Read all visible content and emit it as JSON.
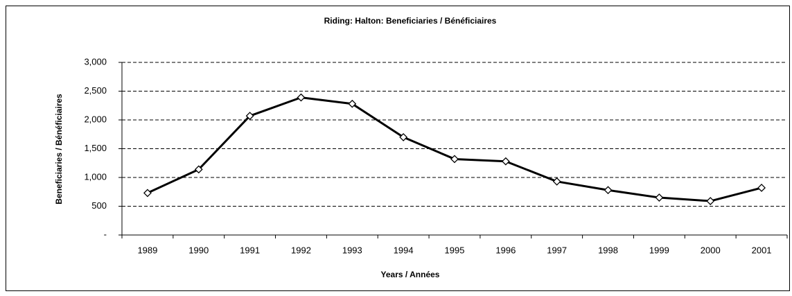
{
  "chart_data": {
    "type": "line",
    "title": "Riding:  Halton:  Beneficiaries / Bénéficiaires",
    "x_label": "Years / Années",
    "y_label": "Beneficiaries / Bénéficiaires",
    "categories": [
      "1989",
      "1990",
      "1991",
      "1992",
      "1993",
      "1994",
      "1995",
      "1996",
      "1997",
      "1998",
      "1999",
      "2000",
      "2001"
    ],
    "values": [
      730,
      1140,
      2070,
      2390,
      2280,
      1700,
      1320,
      1280,
      930,
      780,
      650,
      590,
      820
    ],
    "color": "#000000",
    "ylim": [
      0,
      3000
    ],
    "yticks": [
      {
        "value": 0,
        "label": "-"
      },
      500,
      {
        "value": 1000,
        "label": "1,000"
      },
      {
        "value": 1500,
        "label": "1,500"
      },
      {
        "value": 2000,
        "label": "2,000"
      },
      {
        "value": 2500,
        "label": "2,500"
      },
      {
        "value": 3000,
        "label": "3,000"
      }
    ],
    "grid": true
  }
}
